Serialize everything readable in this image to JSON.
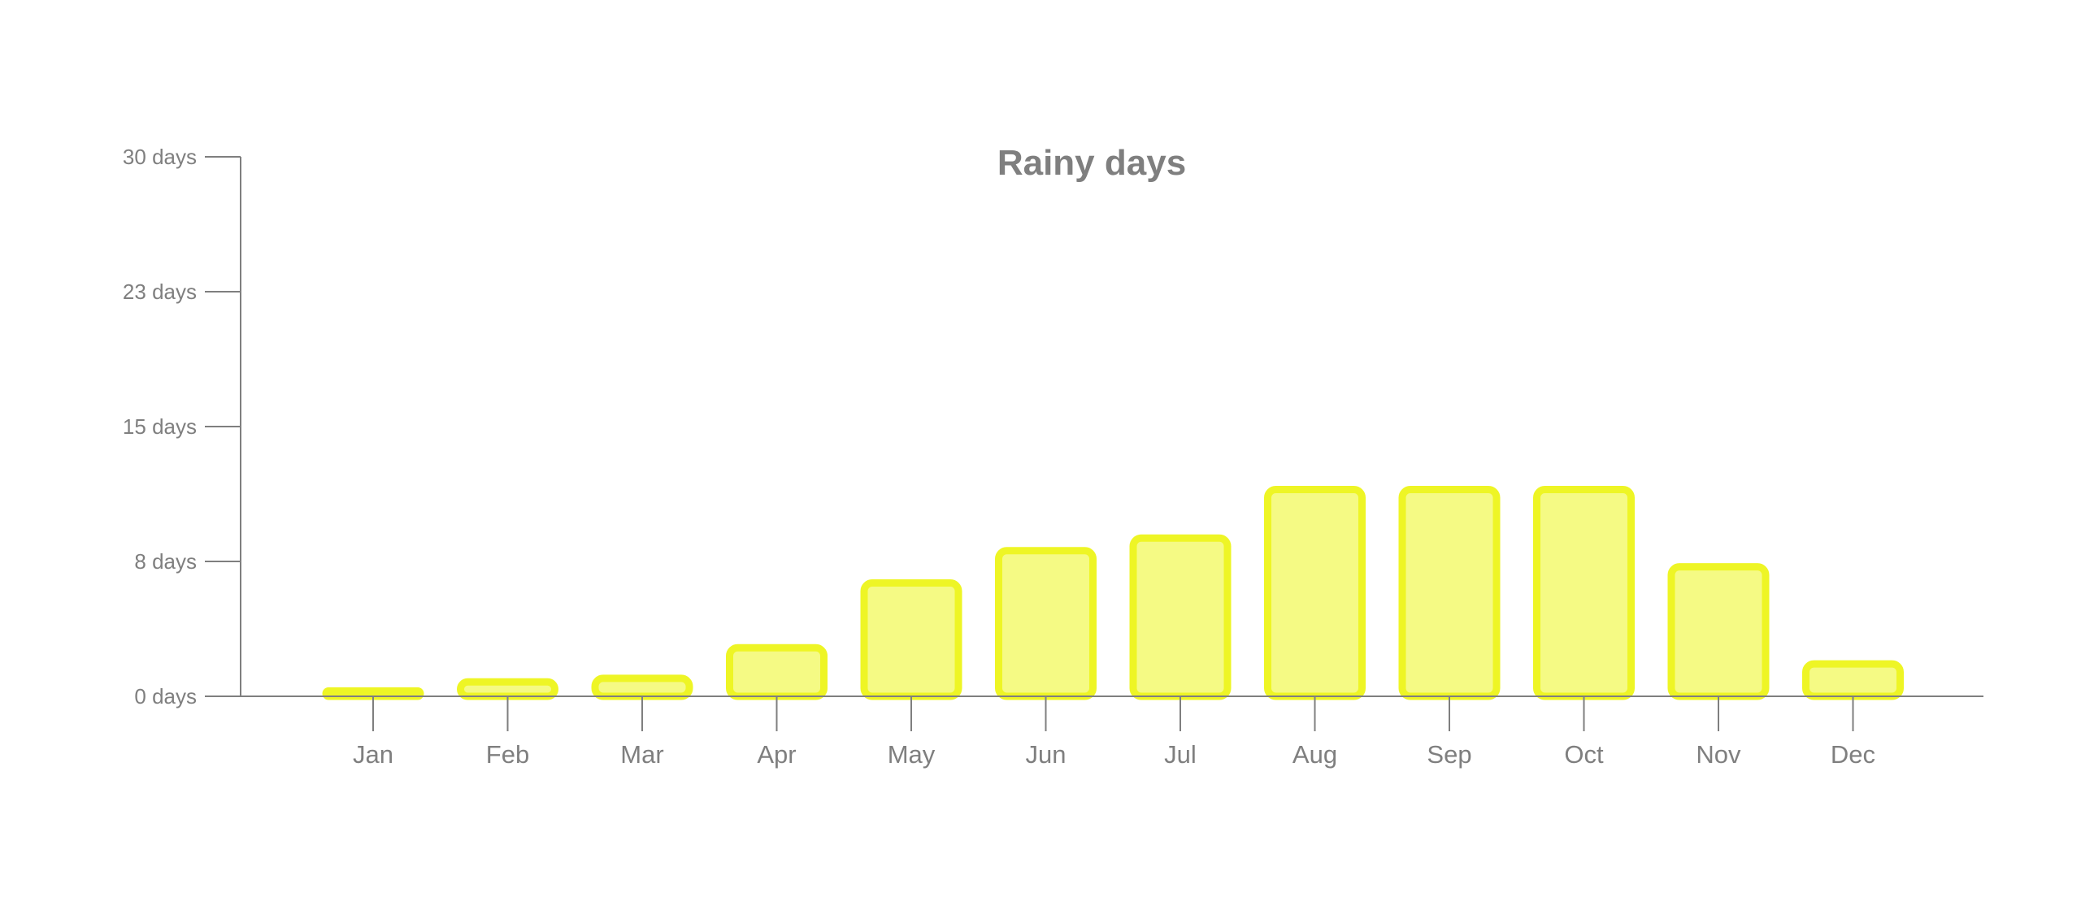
{
  "chart_data": {
    "type": "bar",
    "title": "Rainy days",
    "categories": [
      "Jan",
      "Feb",
      "Mar",
      "Apr",
      "May",
      "Jun",
      "Jul",
      "Aug",
      "Sep",
      "Oct",
      "Nov",
      "Dec"
    ],
    "values": [
      0.3,
      0.8,
      1.0,
      2.7,
      6.3,
      8.1,
      8.8,
      11.5,
      11.5,
      11.5,
      7.2,
      1.8
    ],
    "y_ticks": [
      {
        "value": 0,
        "label": "0 days"
      },
      {
        "value": 7.5,
        "label": "8 days"
      },
      {
        "value": 15,
        "label": "15 days"
      },
      {
        "value": 22.5,
        "label": "23 days"
      },
      {
        "value": 30,
        "label": "30 days"
      }
    ],
    "ylim": [
      0,
      30
    ],
    "xlabel": "",
    "ylabel": "",
    "legend": "none",
    "grid": false,
    "colors": {
      "bar_fill": "#f5fa84",
      "bar_stroke": "#eef525",
      "axis": "#7f7f7f",
      "text": "#7f7f7f"
    }
  }
}
